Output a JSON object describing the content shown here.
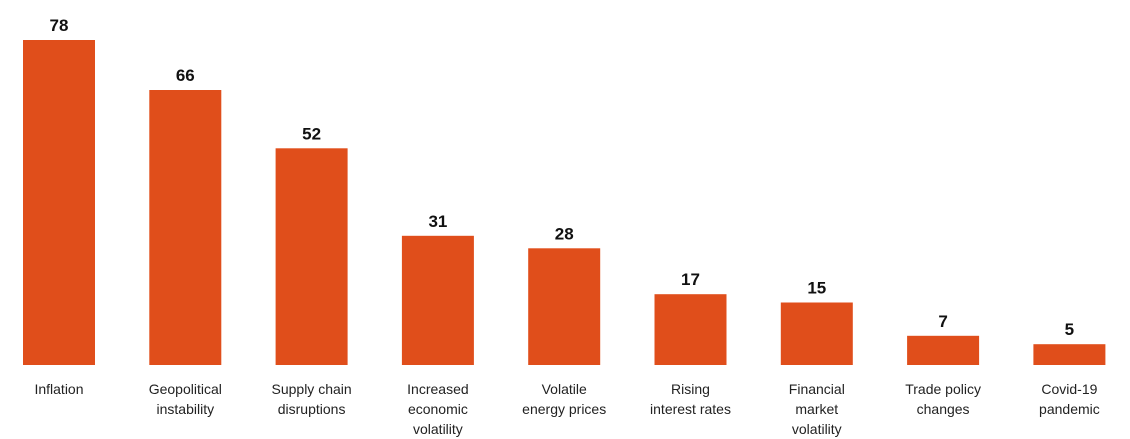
{
  "chart_data": {
    "type": "bar",
    "categories": [
      [
        "Inflation"
      ],
      [
        "Geopolitical",
        "instability"
      ],
      [
        "Supply chain",
        "disruptions"
      ],
      [
        "Increased",
        "economic",
        "volatility"
      ],
      [
        "Volatile",
        "energy prices"
      ],
      [
        "Rising",
        "interest rates"
      ],
      [
        "Financial",
        "market",
        "volatility"
      ],
      [
        "Trade policy",
        "changes"
      ],
      [
        "Covid-19",
        "pandemic"
      ]
    ],
    "values": [
      78,
      66,
      52,
      31,
      28,
      17,
      15,
      7,
      5
    ],
    "ylim": [
      0,
      78
    ],
    "grid": false,
    "bar_color": "#E04E1B",
    "label_color": "#111111"
  }
}
